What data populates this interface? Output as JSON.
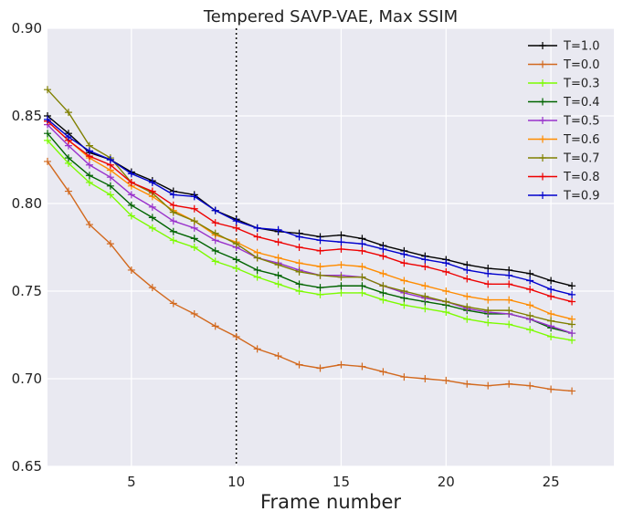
{
  "chart_data": {
    "type": "line",
    "title": "Tempered SAVP-VAE, Max SSIM",
    "xlabel": "Frame number",
    "ylabel": "",
    "xlim": [
      1,
      28
    ],
    "ylim": [
      0.65,
      0.9
    ],
    "xticks": [
      5,
      10,
      15,
      20,
      25
    ],
    "yticks": [
      0.65,
      0.7,
      0.75,
      0.8,
      0.85,
      0.9
    ],
    "xtick_labels": [
      "5",
      "10",
      "15",
      "20",
      "25"
    ],
    "ytick_labels": [
      "0.65",
      "0.70",
      "0.75",
      "0.80",
      "0.85",
      "0.90"
    ],
    "grid": true,
    "legend_position": "top-right",
    "vline": {
      "x": 10,
      "style": "dotted"
    },
    "x": [
      1,
      2,
      3,
      4,
      5,
      6,
      7,
      8,
      9,
      10,
      11,
      12,
      13,
      14,
      15,
      16,
      17,
      18,
      19,
      20,
      21,
      22,
      23,
      24,
      25,
      26
    ],
    "series": [
      {
        "name": "T=1.0",
        "color": "#000000",
        "values": [
          0.85,
          0.84,
          0.829,
          0.825,
          0.818,
          0.813,
          0.807,
          0.805,
          0.796,
          0.791,
          0.786,
          0.784,
          0.783,
          0.781,
          0.782,
          0.78,
          0.776,
          0.773,
          0.77,
          0.768,
          0.765,
          0.763,
          0.762,
          0.76,
          0.756,
          0.753
        ]
      },
      {
        "name": "T=0.0",
        "color": "#d2691e",
        "values": [
          0.824,
          0.807,
          0.788,
          0.777,
          0.762,
          0.752,
          0.743,
          0.737,
          0.73,
          0.724,
          0.717,
          0.713,
          0.708,
          0.706,
          0.708,
          0.707,
          0.704,
          0.701,
          0.7,
          0.699,
          0.697,
          0.696,
          0.697,
          0.696,
          0.694,
          0.693
        ]
      },
      {
        "name": "T=0.3",
        "color": "#7cfc00",
        "values": [
          0.836,
          0.823,
          0.812,
          0.805,
          0.793,
          0.786,
          0.779,
          0.775,
          0.767,
          0.763,
          0.758,
          0.754,
          0.75,
          0.748,
          0.749,
          0.749,
          0.745,
          0.742,
          0.74,
          0.738,
          0.734,
          0.732,
          0.731,
          0.728,
          0.724,
          0.722
        ]
      },
      {
        "name": "T=0.4",
        "color": "#006400",
        "values": [
          0.84,
          0.826,
          0.816,
          0.81,
          0.799,
          0.792,
          0.784,
          0.78,
          0.773,
          0.768,
          0.762,
          0.759,
          0.754,
          0.752,
          0.753,
          0.753,
          0.749,
          0.746,
          0.744,
          0.742,
          0.739,
          0.737,
          0.737,
          0.734,
          0.729,
          0.726
        ]
      },
      {
        "name": "T=0.5",
        "color": "#9932cc",
        "values": [
          0.845,
          0.833,
          0.822,
          0.815,
          0.805,
          0.798,
          0.79,
          0.786,
          0.779,
          0.775,
          0.769,
          0.766,
          0.762,
          0.759,
          0.759,
          0.758,
          0.753,
          0.749,
          0.746,
          0.744,
          0.74,
          0.738,
          0.737,
          0.734,
          0.73,
          0.726
        ]
      },
      {
        "name": "T=0.6",
        "color": "#ff8c00",
        "values": [
          0.847,
          0.836,
          0.826,
          0.819,
          0.81,
          0.804,
          0.796,
          0.79,
          0.782,
          0.778,
          0.772,
          0.769,
          0.766,
          0.764,
          0.765,
          0.764,
          0.76,
          0.756,
          0.753,
          0.75,
          0.747,
          0.745,
          0.745,
          0.742,
          0.737,
          0.734
        ]
      },
      {
        "name": "T=0.7",
        "color": "#808000",
        "values": [
          0.865,
          0.852,
          0.833,
          0.826,
          0.812,
          0.806,
          0.795,
          0.79,
          0.783,
          0.777,
          0.769,
          0.765,
          0.761,
          0.759,
          0.758,
          0.758,
          0.753,
          0.75,
          0.747,
          0.744,
          0.741,
          0.739,
          0.739,
          0.736,
          0.733,
          0.731
        ]
      },
      {
        "name": "T=0.8",
        "color": "#ee0000",
        "values": [
          0.847,
          0.836,
          0.827,
          0.822,
          0.812,
          0.807,
          0.799,
          0.797,
          0.789,
          0.786,
          0.781,
          0.778,
          0.775,
          0.773,
          0.774,
          0.773,
          0.77,
          0.766,
          0.764,
          0.761,
          0.757,
          0.754,
          0.754,
          0.751,
          0.747,
          0.744
        ]
      },
      {
        "name": "T=0.9",
        "color": "#0000cd",
        "values": [
          0.848,
          0.838,
          0.83,
          0.825,
          0.817,
          0.812,
          0.805,
          0.804,
          0.796,
          0.79,
          0.786,
          0.785,
          0.781,
          0.779,
          0.778,
          0.777,
          0.774,
          0.771,
          0.768,
          0.766,
          0.762,
          0.76,
          0.759,
          0.756,
          0.751,
          0.748
        ]
      }
    ]
  }
}
